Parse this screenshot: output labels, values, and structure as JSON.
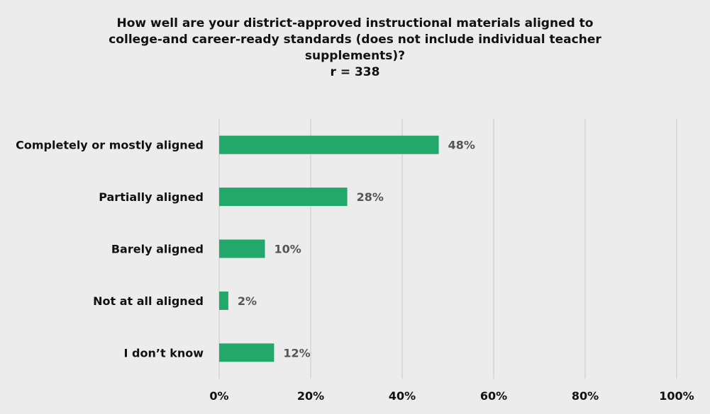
{
  "chart_data": {
    "type": "bar",
    "orientation": "horizontal",
    "title_lines": [
      "How well are your district-approved instructional materials aligned to",
      "college-and career-ready standards (does not include individual teacher",
      "supplements)?"
    ],
    "subtitle": "r = 338",
    "categories": [
      "Completely or mostly aligned",
      "Partially aligned",
      "Barely aligned",
      "Not at all aligned",
      "I don’t know"
    ],
    "values": [
      48,
      28,
      10,
      2,
      12
    ],
    "value_labels": [
      "48%",
      "28%",
      "10%",
      "2%",
      "12%"
    ],
    "xlim": [
      0,
      100
    ],
    "x_ticks": [
      0,
      20,
      40,
      60,
      80,
      100
    ],
    "x_tick_labels": [
      "0%",
      "20%",
      "40%",
      "60%",
      "80%",
      "100%"
    ],
    "grid": true,
    "legend": "none",
    "bar_color": "#22a86b",
    "grid_color": "#d4d4d4"
  }
}
